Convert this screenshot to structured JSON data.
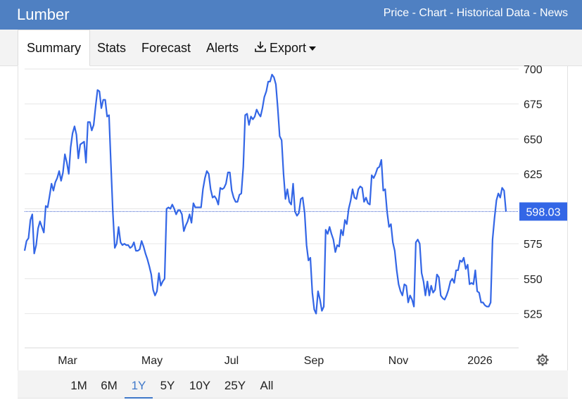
{
  "header": {
    "title": "Lumber",
    "links": [
      "Price",
      "Chart",
      "Historical Data",
      "News"
    ],
    "separator": " - "
  },
  "tabs": [
    {
      "label": "Summary",
      "active": true
    },
    {
      "label": "Stats"
    },
    {
      "label": "Forecast"
    },
    {
      "label": "Alerts"
    },
    {
      "label": "Export",
      "icon": "download-icon",
      "dropdown": true
    }
  ],
  "ranges": [
    {
      "label": "1M"
    },
    {
      "label": "6M"
    },
    {
      "label": "1Y",
      "active": true
    },
    {
      "label": "5Y"
    },
    {
      "label": "10Y"
    },
    {
      "label": "25Y"
    },
    {
      "label": "All"
    }
  ],
  "settings_icon": "gear-icon",
  "colors": {
    "header_bg": "#4f80c2",
    "line": "#3366e6",
    "accent": "#3f78c9",
    "last_price_badge": "#3366e6"
  },
  "chart_data": {
    "type": "line",
    "x_ticks": [
      "Mar",
      "May",
      "Jul",
      "Sep",
      "Nov",
      "2026"
    ],
    "y_ticks": [
      525,
      550,
      575,
      600,
      625,
      650,
      675,
      700
    ],
    "ylim": [
      500,
      700
    ],
    "last_price_label": "598.03",
    "last_price": 598.03,
    "grid": true,
    "y_axis_side": "right",
    "series": [
      {
        "values": [
          570,
          577,
          579,
          592,
          596,
          568,
          574,
          586,
          591,
          587,
          583,
          602,
          601,
          609,
          618,
          613,
          619,
          622,
          627,
          620,
          626,
          639,
          633,
          625,
          644,
          654,
          659,
          653,
          636,
          646,
          647,
          648,
          633,
          662,
          662,
          656,
          660,
          673,
          685,
          684,
          672,
          678,
          678,
          666,
          667,
          632,
          597,
          572,
          575,
          587,
          576,
          574,
          575,
          574,
          574,
          572,
          573,
          576,
          570,
          570,
          571,
          577,
          573,
          568,
          564,
          559,
          553,
          542,
          538,
          541,
          554,
          545,
          548,
          550,
          600,
          601,
          600,
          603,
          600,
          596,
          599,
          599,
          596,
          584,
          588,
          591,
          596,
          590,
          604,
          601,
          601,
          601,
          601,
          614,
          622,
          627,
          625,
          614,
          608,
          609,
          607,
          603,
          615,
          614,
          615,
          618,
          626,
          626,
          613,
          608,
          605,
          605,
          610,
          611,
          630,
          667,
          668,
          660,
          666,
          664,
          666,
          671,
          668,
          666,
          672,
          680,
          684,
          691,
          691,
          696,
          694,
          689,
          672,
          652,
          649,
          625,
          607,
          614,
          605,
          603,
          618,
          598,
          595,
          597,
          607,
          608,
          597,
          574,
          563,
          565,
          540,
          528,
          525,
          541,
          535,
          527,
          530,
          585,
          582,
          587,
          582,
          578,
          569,
          574,
          573,
          585,
          581,
          592,
          589,
          600,
          606,
          614,
          608,
          607,
          614,
          616,
          615,
          605,
          608,
          604,
          603,
          624,
          622,
          625,
          629,
          630,
          635,
          613,
          614,
          598,
          587,
          589,
          576,
          570,
          556,
          546,
          541,
          538,
          546,
          545,
          533,
          538,
          535,
          530,
          576,
          578,
          575,
          554,
          548,
          538,
          548,
          538,
          545,
          540,
          542,
          553,
          551,
          538,
          536,
          535,
          538,
          542,
          548,
          550,
          547,
          556,
          556,
          563,
          562,
          565,
          557,
          560,
          546,
          547,
          546,
          556,
          541,
          540,
          533,
          533,
          531,
          530,
          530,
          533,
          578,
          593,
          606,
          611,
          608,
          615,
          613,
          598
        ]
      }
    ]
  }
}
